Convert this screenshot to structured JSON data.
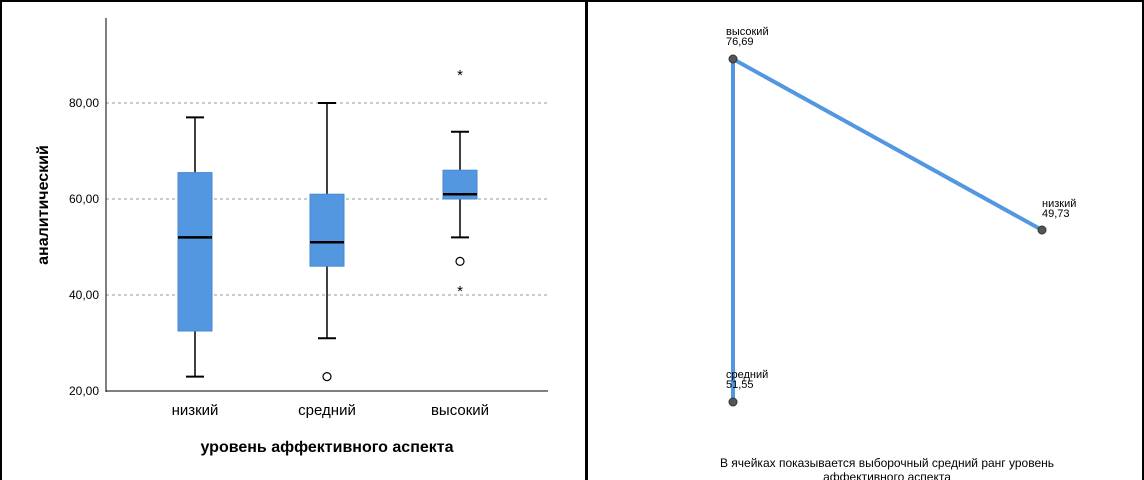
{
  "chart_data": [
    {
      "type": "boxplot",
      "xlabel": "уровень аффективного аспекта",
      "ylabel": "аналитический",
      "ylim": [
        20,
        100
      ],
      "yticks": [
        "20,00",
        "40,00",
        "60,00",
        "80,00"
      ],
      "grid": "horizontal dashed",
      "box_color": "#5297e0",
      "categories": [
        "низкий",
        "средний",
        "высокий"
      ],
      "boxes": [
        {
          "category": "низкий",
          "whisker_low": 23,
          "q1": 32.5,
          "median": 52,
          "q3": 65.5,
          "whisker_high": 77,
          "outliers": [],
          "extremes": []
        },
        {
          "category": "средний",
          "whisker_low": 31,
          "q1": 46,
          "median": 51,
          "q3": 61,
          "whisker_high": 80,
          "outliers": [
            23
          ],
          "extremes": []
        },
        {
          "category": "высокий",
          "whisker_low": 52,
          "q1": 60,
          "median": 61,
          "q3": 66,
          "whisker_high": 74,
          "outliers": [
            47
          ],
          "extremes": [
            86,
            41
          ]
        }
      ]
    },
    {
      "type": "network",
      "line_color": "#5297e0",
      "nodes": [
        {
          "id": "высокий",
          "label": "высокий",
          "value": "76,69"
        },
        {
          "id": "низкий",
          "label": "низкий",
          "value": "49,73"
        },
        {
          "id": "средний",
          "label": "средний",
          "value": "51,55"
        }
      ],
      "edges": [
        [
          "высокий",
          "низкий"
        ],
        [
          "высокий",
          "средний"
        ]
      ],
      "footnote_line1": "В ячейках показывается выборочный средний ранг уровень",
      "footnote_line2": "аффективного аспекта"
    }
  ]
}
